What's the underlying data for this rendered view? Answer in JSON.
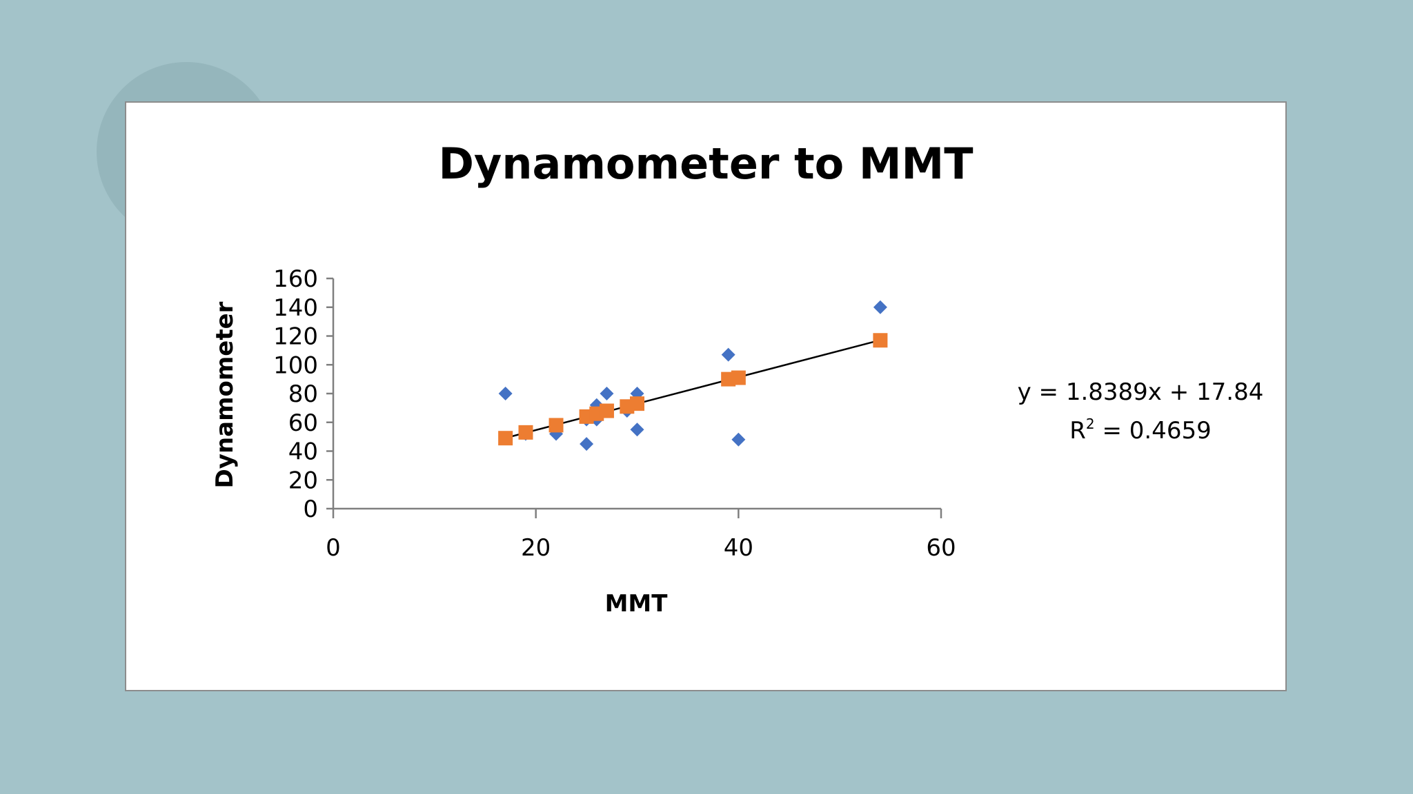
{
  "chart_data": {
    "type": "scatter",
    "title": "Dynamometer to MMT",
    "xlabel": "MMT",
    "ylabel": "Dynamometer",
    "xlim": [
      0,
      60
    ],
    "ylim": [
      0,
      160
    ],
    "xticks": [
      0,
      20,
      40,
      60
    ],
    "yticks": [
      0,
      20,
      40,
      60,
      80,
      100,
      120,
      140,
      160
    ],
    "grid": false,
    "legend": "none",
    "series": [
      {
        "marker": "diamond",
        "color": "#4472c4",
        "points": [
          {
            "x": 17,
            "y": 80
          },
          {
            "x": 19,
            "y": 52
          },
          {
            "x": 22,
            "y": 52
          },
          {
            "x": 25,
            "y": 45
          },
          {
            "x": 25,
            "y": 62
          },
          {
            "x": 26,
            "y": 62
          },
          {
            "x": 26,
            "y": 72
          },
          {
            "x": 27,
            "y": 80
          },
          {
            "x": 29,
            "y": 68
          },
          {
            "x": 30,
            "y": 80
          },
          {
            "x": 30,
            "y": 55
          },
          {
            "x": 39,
            "y": 107
          },
          {
            "x": 40,
            "y": 48
          },
          {
            "x": 54,
            "y": 140
          }
        ]
      },
      {
        "marker": "square",
        "color": "#ed7d31",
        "points": [
          {
            "x": 17,
            "y": 49
          },
          {
            "x": 19,
            "y": 53
          },
          {
            "x": 22,
            "y": 58
          },
          {
            "x": 25,
            "y": 64
          },
          {
            "x": 26,
            "y": 66
          },
          {
            "x": 27,
            "y": 68
          },
          {
            "x": 29,
            "y": 71
          },
          {
            "x": 30,
            "y": 73
          },
          {
            "x": 39,
            "y": 90
          },
          {
            "x": 40,
            "y": 91
          },
          {
            "x": 54,
            "y": 117
          }
        ]
      }
    ],
    "trendline": {
      "slope": 1.8389,
      "intercept": 17.84,
      "x_range": [
        17,
        54
      ],
      "color": "#000000",
      "equation_text": "y = 1.8389x + 17.84",
      "r2_label": "R",
      "r2_sup": "2",
      "r2_value_text": " = 0.4659"
    }
  }
}
